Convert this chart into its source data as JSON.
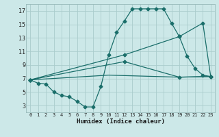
{
  "xlabel": "Humidex (Indice chaleur)",
  "bg_color": "#cce8e8",
  "grid_color": "#aacccc",
  "line_color": "#1a6e6a",
  "xlim": [
    -0.5,
    23.5
  ],
  "ylim": [
    2,
    18
  ],
  "xticks": [
    0,
    1,
    2,
    3,
    4,
    5,
    6,
    7,
    8,
    9,
    10,
    11,
    12,
    13,
    14,
    15,
    16,
    17,
    18,
    19,
    20,
    21,
    22,
    23
  ],
  "yticks": [
    3,
    5,
    7,
    9,
    11,
    13,
    15,
    17
  ],
  "line1_x": [
    0,
    1,
    2,
    3,
    4,
    5,
    6,
    7,
    8,
    9,
    10,
    11,
    12,
    13,
    14,
    15,
    16,
    17,
    18,
    19,
    20,
    21,
    22,
    23
  ],
  "line1_y": [
    6.8,
    6.3,
    6.2,
    5.0,
    4.5,
    4.3,
    3.6,
    2.8,
    2.8,
    5.8,
    10.5,
    13.8,
    15.5,
    17.3,
    17.3,
    17.3,
    17.3,
    17.3,
    15.2,
    13.2,
    10.3,
    8.5,
    7.5,
    7.3
  ],
  "line2_x": [
    0,
    12,
    19,
    22,
    23
  ],
  "line2_y": [
    6.8,
    10.5,
    13.2,
    15.2,
    7.3
  ],
  "line3_x": [
    0,
    12,
    19,
    23
  ],
  "line3_y": [
    6.8,
    9.5,
    7.2,
    7.3
  ],
  "line4_x": [
    0,
    10,
    19,
    23
  ],
  "line4_y": [
    6.8,
    7.5,
    7.2,
    7.3
  ]
}
